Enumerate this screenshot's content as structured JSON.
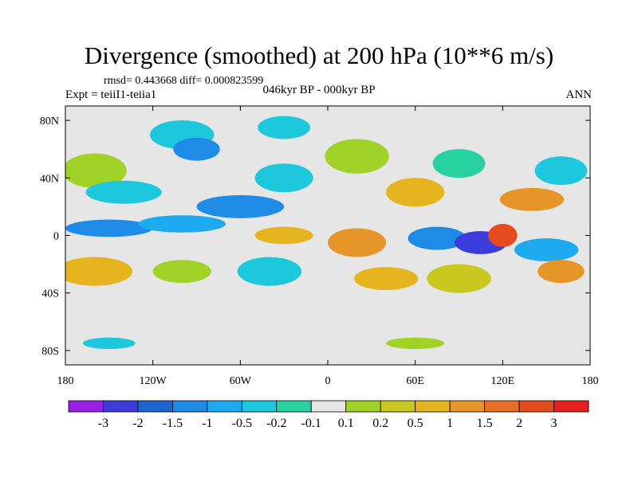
{
  "title": "Divergence (smoothed) at 200 hPa (10**6 m/s)",
  "stats": "rmsd= 0.443668  diff= 0.000823599",
  "experiment": "Expt = teiiI1-teiia1",
  "period": "046kyr BP - 000kyr BP",
  "season": "ANN",
  "map": {
    "lon_ticks": [
      "180",
      "120W",
      "60W",
      "0",
      "60E",
      "120E",
      "180"
    ],
    "lat_ticks": [
      "80N",
      "40N",
      "0",
      "40S",
      "80S"
    ],
    "lat_tick_values": [
      80,
      40,
      0,
      -40,
      -80
    ],
    "lon_range": [
      -180,
      180
    ],
    "lat_range": [
      -90,
      90
    ],
    "background_color": "#e6e6e6"
  },
  "colorbar": {
    "labels": [
      "-3",
      "-2",
      "-1.5",
      "-1",
      "-0.5",
      "-0.2",
      "-0.1",
      "0.1",
      "0.2",
      "0.5",
      "1",
      "1.5",
      "2",
      "3"
    ],
    "colors": [
      "#9b1ee6",
      "#3c3cdc",
      "#1e64d2",
      "#1e8ce6",
      "#1eaaf0",
      "#1ec8dc",
      "#28d2a0",
      "#e6e6e6",
      "#a0d228",
      "#c8c81e",
      "#e6b41e",
      "#e69628",
      "#e66e28",
      "#e64b1e",
      "#e61e1e"
    ]
  },
  "blobs": [
    {
      "lon": -100,
      "lat": 70,
      "rx": 22,
      "ry": 10,
      "color": "#1ec8dc"
    },
    {
      "lon": -30,
      "lat": 75,
      "rx": 18,
      "ry": 8,
      "color": "#1ec8dc"
    },
    {
      "lon": -90,
      "lat": 60,
      "rx": 16,
      "ry": 8,
      "color": "#1e8ce6"
    },
    {
      "lon": -160,
      "lat": 45,
      "rx": 22,
      "ry": 12,
      "color": "#a0d228"
    },
    {
      "lon": -140,
      "lat": 30,
      "rx": 26,
      "ry": 8,
      "color": "#1ec8dc"
    },
    {
      "lon": -60,
      "lat": 20,
      "rx": 30,
      "ry": 8,
      "color": "#1e8ce6"
    },
    {
      "lon": -30,
      "lat": 40,
      "rx": 20,
      "ry": 10,
      "color": "#1ec8dc"
    },
    {
      "lon": 20,
      "lat": 55,
      "rx": 22,
      "ry": 12,
      "color": "#a0d228"
    },
    {
      "lon": 60,
      "lat": 30,
      "rx": 20,
      "ry": 10,
      "color": "#e6b41e"
    },
    {
      "lon": 90,
      "lat": 50,
      "rx": 18,
      "ry": 10,
      "color": "#28d2a0"
    },
    {
      "lon": 140,
      "lat": 25,
      "rx": 22,
      "ry": 8,
      "color": "#e69628"
    },
    {
      "lon": 160,
      "lat": 45,
      "rx": 18,
      "ry": 10,
      "color": "#1ec8dc"
    },
    {
      "lon": -150,
      "lat": 5,
      "rx": 30,
      "ry": 6,
      "color": "#1e8ce6"
    },
    {
      "lon": -100,
      "lat": 8,
      "rx": 30,
      "ry": 6,
      "color": "#1eaaf0"
    },
    {
      "lon": -30,
      "lat": 0,
      "rx": 20,
      "ry": 6,
      "color": "#e6b41e"
    },
    {
      "lon": 20,
      "lat": -5,
      "rx": 20,
      "ry": 10,
      "color": "#e69628"
    },
    {
      "lon": 75,
      "lat": -2,
      "rx": 20,
      "ry": 8,
      "color": "#1e8ce6"
    },
    {
      "lon": 105,
      "lat": -5,
      "rx": 18,
      "ry": 8,
      "color": "#3c3cdc"
    },
    {
      "lon": 120,
      "lat": 0,
      "rx": 10,
      "ry": 8,
      "color": "#e64b1e"
    },
    {
      "lon": 150,
      "lat": -10,
      "rx": 22,
      "ry": 8,
      "color": "#1eaaf0"
    },
    {
      "lon": 160,
      "lat": -25,
      "rx": 16,
      "ry": 8,
      "color": "#e69628"
    },
    {
      "lon": -160,
      "lat": -25,
      "rx": 26,
      "ry": 10,
      "color": "#e6b41e"
    },
    {
      "lon": -100,
      "lat": -25,
      "rx": 20,
      "ry": 8,
      "color": "#a0d228"
    },
    {
      "lon": -40,
      "lat": -25,
      "rx": 22,
      "ry": 10,
      "color": "#1ec8dc"
    },
    {
      "lon": 40,
      "lat": -30,
      "rx": 22,
      "ry": 8,
      "color": "#e6b41e"
    },
    {
      "lon": 90,
      "lat": -30,
      "rx": 22,
      "ry": 10,
      "color": "#c8c81e"
    },
    {
      "lon": -150,
      "lat": -75,
      "rx": 18,
      "ry": 4,
      "color": "#1ec8dc"
    },
    {
      "lon": 60,
      "lat": -75,
      "rx": 20,
      "ry": 4,
      "color": "#a0d228"
    }
  ]
}
